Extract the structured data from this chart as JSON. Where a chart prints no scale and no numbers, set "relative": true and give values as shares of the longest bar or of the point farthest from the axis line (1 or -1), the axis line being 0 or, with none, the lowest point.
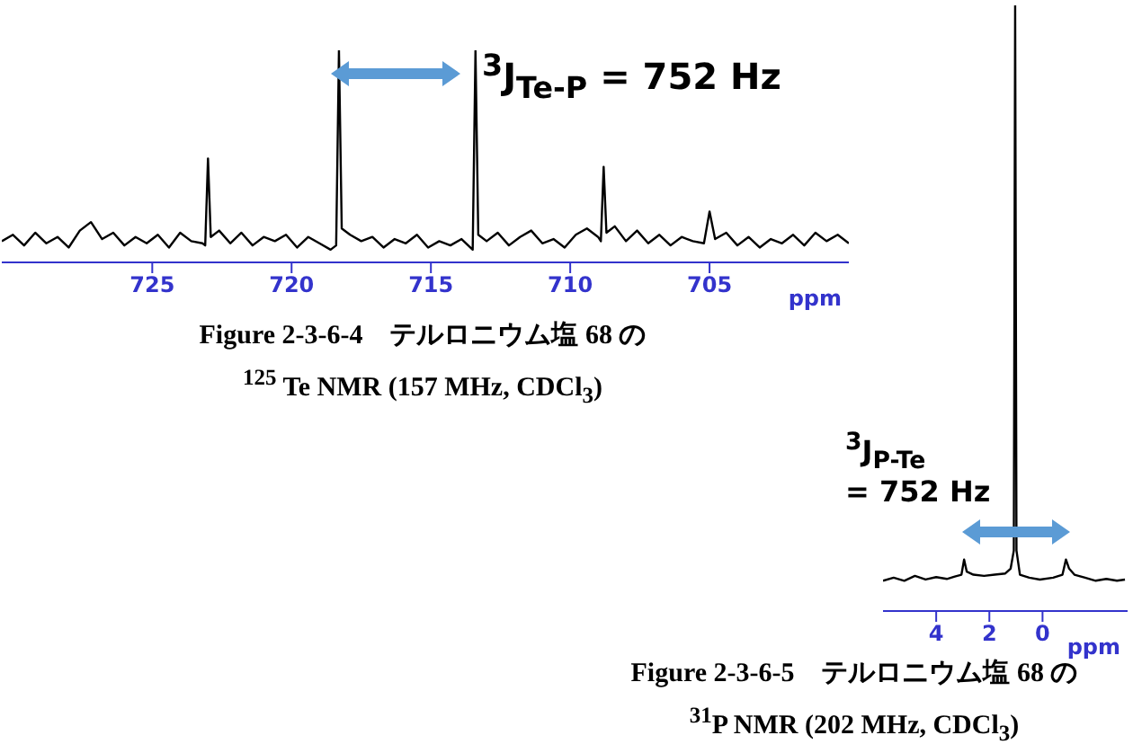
{
  "chart_data": [
    {
      "type": "line",
      "relative": true,
      "title": "Figure 2-3-6-4　テルロニウム塩 68 の",
      "subtitle": "$^{125}$ Te NMR (157 MHz, CDCl$_{3}$)",
      "xlabel": "ppm",
      "annotations": [
        "$^{3}$J$_{Te-P}$ = 752 Hz"
      ],
      "xlim": [
        730.4,
        700
      ],
      "xticks": [
        725,
        720,
        715,
        710,
        705
      ],
      "x": [
        730.4,
        730.0,
        729.6,
        729.2,
        728.8,
        728.4,
        728.0,
        727.6,
        727.2,
        726.8,
        726.4,
        726.0,
        725.6,
        725.2,
        724.8,
        724.4,
        724.0,
        723.6,
        723.2,
        723.1,
        723.0,
        722.9,
        722.6,
        722.2,
        721.8,
        721.4,
        721.0,
        720.6,
        720.2,
        719.8,
        719.4,
        719.0,
        718.6,
        718.4,
        718.3,
        718.2,
        717.9,
        717.5,
        717.1,
        716.7,
        716.3,
        715.9,
        715.5,
        715.1,
        714.7,
        714.3,
        713.9,
        713.5,
        713.4,
        713.3,
        713.0,
        712.6,
        712.2,
        711.8,
        711.4,
        711.0,
        710.6,
        710.2,
        709.8,
        709.4,
        709.0,
        708.9,
        708.8,
        708.7,
        708.4,
        708.0,
        707.6,
        707.2,
        706.8,
        706.4,
        706.0,
        705.6,
        705.2,
        705.0,
        704.8,
        704.4,
        704.0,
        703.6,
        703.2,
        702.8,
        702.4,
        702.0,
        701.6,
        701.2,
        700.8,
        700.4,
        700.0
      ],
      "values": [
        0.1,
        0.13,
        0.08,
        0.14,
        0.09,
        0.12,
        0.07,
        0.15,
        0.19,
        0.11,
        0.14,
        0.08,
        0.12,
        0.09,
        0.13,
        0.07,
        0.14,
        0.1,
        0.09,
        0.08,
        0.49,
        0.12,
        0.15,
        0.09,
        0.14,
        0.08,
        0.12,
        0.1,
        0.13,
        0.07,
        0.12,
        0.09,
        0.06,
        0.08,
        1,
        0.16,
        0.13,
        0.1,
        0.12,
        0.07,
        0.11,
        0.09,
        0.13,
        0.07,
        0.1,
        0.08,
        0.11,
        0.06,
        1,
        0.13,
        0.1,
        0.14,
        0.08,
        0.12,
        0.15,
        0.09,
        0.11,
        0.07,
        0.13,
        0.16,
        0.12,
        0.1,
        0.45,
        0.14,
        0.17,
        0.1,
        0.15,
        0.09,
        0.13,
        0.08,
        0.12,
        0.1,
        0.09,
        0.24,
        0.11,
        0.14,
        0.08,
        0.12,
        0.07,
        0.11,
        0.09,
        0.13,
        0.08,
        0.14,
        0.1,
        0.13,
        0.09
      ],
      "color": "#000000"
    },
    {
      "type": "line",
      "relative": true,
      "title": "Figure 2-3-6-5　テルロニウム塩 68 の",
      "subtitle": "$^{31}$P NMR (202 MHz, CDCl$_{3}$)",
      "xlabel": "ppm",
      "annotations": [
        "$^{3}$J$_{P-Te}$\n= 752 Hz"
      ],
      "xlim": [
        6.0,
        -3.2
      ],
      "xticks": [
        4,
        2,
        0
      ],
      "x": [
        6.0,
        5.6,
        5.2,
        4.8,
        4.4,
        4.0,
        3.6,
        3.3,
        3.05,
        2.95,
        2.85,
        2.6,
        2.2,
        1.8,
        1.4,
        1.2,
        1.08,
        1.03,
        0.98,
        0.85,
        0.5,
        0.1,
        -0.4,
        -0.75,
        -0.88,
        -1.0,
        -1.2,
        -1.6,
        -2.0,
        -2.4,
        -2.8,
        -3.1
      ],
      "values": [
        0.05,
        0.055,
        0.05,
        0.058,
        0.052,
        0.056,
        0.053,
        0.057,
        0.06,
        0.085,
        0.065,
        0.06,
        0.058,
        0.06,
        0.062,
        0.07,
        0.1,
        1,
        0.1,
        0.06,
        0.055,
        0.052,
        0.055,
        0.06,
        0.085,
        0.07,
        0.06,
        0.055,
        0.05,
        0.053,
        0.05,
        0.052
      ],
      "color": "#000000"
    }
  ]
}
